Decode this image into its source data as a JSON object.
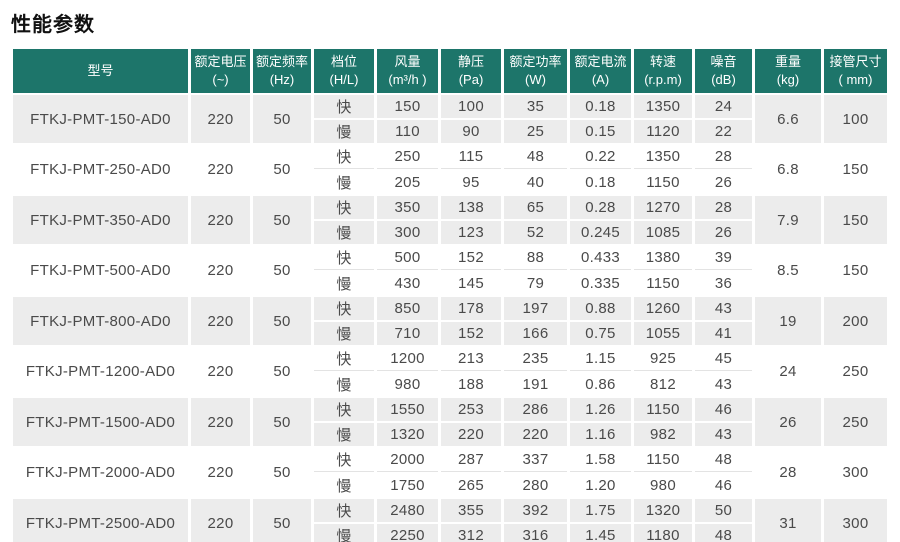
{
  "page": {
    "title": "性能参数"
  },
  "colors": {
    "header_bg": "#1d756a",
    "header_text": "#ffffff",
    "stripe_bg": "#ececec",
    "body_text": "#4a4a4a"
  },
  "table": {
    "columns": [
      {
        "id": "model",
        "line1": "型号",
        "line2": ""
      },
      {
        "id": "voltage",
        "line1": "额定电压",
        "line2": "(~)"
      },
      {
        "id": "frequency",
        "line1": "额定频率",
        "line2": "(Hz)"
      },
      {
        "id": "gear",
        "line1": "档位",
        "line2": "(H/L)"
      },
      {
        "id": "airflow",
        "line1": "风量",
        "line2": "(m³/h )"
      },
      {
        "id": "static_pressure",
        "line1": "静压",
        "line2": "(Pa)"
      },
      {
        "id": "rated_power",
        "line1": "额定功率",
        "line2": "(W)"
      },
      {
        "id": "rated_current",
        "line1": "额定电流",
        "line2": "(A)"
      },
      {
        "id": "speed",
        "line1": "转速",
        "line2": "(r.p.m)"
      },
      {
        "id": "noise",
        "line1": "噪音",
        "line2": "(dB)"
      },
      {
        "id": "weight",
        "line1": "重量",
        "line2": "(kg)"
      },
      {
        "id": "pipe_size",
        "line1": "接管尺寸",
        "line2": "( mm)"
      }
    ],
    "groups": [
      {
        "model": "FTKJ-PMT-150-AD0",
        "voltage": "220",
        "frequency": "50",
        "rows": [
          {
            "gear": "快",
            "airflow": "150",
            "static_pressure": "100",
            "rated_power": "35",
            "rated_current": "0.18",
            "speed": "1350",
            "noise": "24"
          },
          {
            "gear": "慢",
            "airflow": "110",
            "static_pressure": "90",
            "rated_power": "25",
            "rated_current": "0.15",
            "speed": "1120",
            "noise": "22"
          }
        ],
        "weight": "6.6",
        "pipe_size": "100"
      },
      {
        "model": "FTKJ-PMT-250-AD0",
        "voltage": "220",
        "frequency": "50",
        "rows": [
          {
            "gear": "快",
            "airflow": "250",
            "static_pressure": "115",
            "rated_power": "48",
            "rated_current": "0.22",
            "speed": "1350",
            "noise": "28"
          },
          {
            "gear": "慢",
            "airflow": "205",
            "static_pressure": "95",
            "rated_power": "40",
            "rated_current": "0.18",
            "speed": "1150",
            "noise": "26"
          }
        ],
        "weight": "6.8",
        "pipe_size": "150"
      },
      {
        "model": "FTKJ-PMT-350-AD0",
        "voltage": "220",
        "frequency": "50",
        "rows": [
          {
            "gear": "快",
            "airflow": "350",
            "static_pressure": "138",
            "rated_power": "65",
            "rated_current": "0.28",
            "speed": "1270",
            "noise": "28"
          },
          {
            "gear": "慢",
            "airflow": "300",
            "static_pressure": "123",
            "rated_power": "52",
            "rated_current": "0.245",
            "speed": "1085",
            "noise": "26"
          }
        ],
        "weight": "7.9",
        "pipe_size": "150"
      },
      {
        "model": "FTKJ-PMT-500-AD0",
        "voltage": "220",
        "frequency": "50",
        "rows": [
          {
            "gear": "快",
            "airflow": "500",
            "static_pressure": "152",
            "rated_power": "88",
            "rated_current": "0.433",
            "speed": "1380",
            "noise": "39"
          },
          {
            "gear": "慢",
            "airflow": "430",
            "static_pressure": "145",
            "rated_power": "79",
            "rated_current": "0.335",
            "speed": "1150",
            "noise": "36"
          }
        ],
        "weight": "8.5",
        "pipe_size": "150"
      },
      {
        "model": "FTKJ-PMT-800-AD0",
        "voltage": "220",
        "frequency": "50",
        "rows": [
          {
            "gear": "快",
            "airflow": "850",
            "static_pressure": "178",
            "rated_power": "197",
            "rated_current": "0.88",
            "speed": "1260",
            "noise": "43"
          },
          {
            "gear": "慢",
            "airflow": "710",
            "static_pressure": "152",
            "rated_power": "166",
            "rated_current": "0.75",
            "speed": "1055",
            "noise": "41"
          }
        ],
        "weight": "19",
        "pipe_size": "200"
      },
      {
        "model": "FTKJ-PMT-1200-AD0",
        "voltage": "220",
        "frequency": "50",
        "rows": [
          {
            "gear": "快",
            "airflow": "1200",
            "static_pressure": "213",
            "rated_power": "235",
            "rated_current": "1.15",
            "speed": "925",
            "noise": "45"
          },
          {
            "gear": "慢",
            "airflow": "980",
            "static_pressure": "188",
            "rated_power": "191",
            "rated_current": "0.86",
            "speed": "812",
            "noise": "43"
          }
        ],
        "weight": "24",
        "pipe_size": "250"
      },
      {
        "model": "FTKJ-PMT-1500-AD0",
        "voltage": "220",
        "frequency": "50",
        "rows": [
          {
            "gear": "快",
            "airflow": "1550",
            "static_pressure": "253",
            "rated_power": "286",
            "rated_current": "1.26",
            "speed": "1150",
            "noise": "46"
          },
          {
            "gear": "慢",
            "airflow": "1320",
            "static_pressure": "220",
            "rated_power": "220",
            "rated_current": "1.16",
            "speed": "982",
            "noise": "43"
          }
        ],
        "weight": "26",
        "pipe_size": "250"
      },
      {
        "model": "FTKJ-PMT-2000-AD0",
        "voltage": "220",
        "frequency": "50",
        "rows": [
          {
            "gear": "快",
            "airflow": "2000",
            "static_pressure": "287",
            "rated_power": "337",
            "rated_current": "1.58",
            "speed": "1150",
            "noise": "48"
          },
          {
            "gear": "慢",
            "airflow": "1750",
            "static_pressure": "265",
            "rated_power": "280",
            "rated_current": "1.20",
            "speed": "980",
            "noise": "46"
          }
        ],
        "weight": "28",
        "pipe_size": "300"
      },
      {
        "model": "FTKJ-PMT-2500-AD0",
        "voltage": "220",
        "frequency": "50",
        "rows": [
          {
            "gear": "快",
            "airflow": "2480",
            "static_pressure": "355",
            "rated_power": "392",
            "rated_current": "1.75",
            "speed": "1320",
            "noise": "50"
          },
          {
            "gear": "慢",
            "airflow": "2250",
            "static_pressure": "312",
            "rated_power": "316",
            "rated_current": "1.45",
            "speed": "1180",
            "noise": "48"
          }
        ],
        "weight": "31",
        "pipe_size": "300"
      }
    ]
  }
}
